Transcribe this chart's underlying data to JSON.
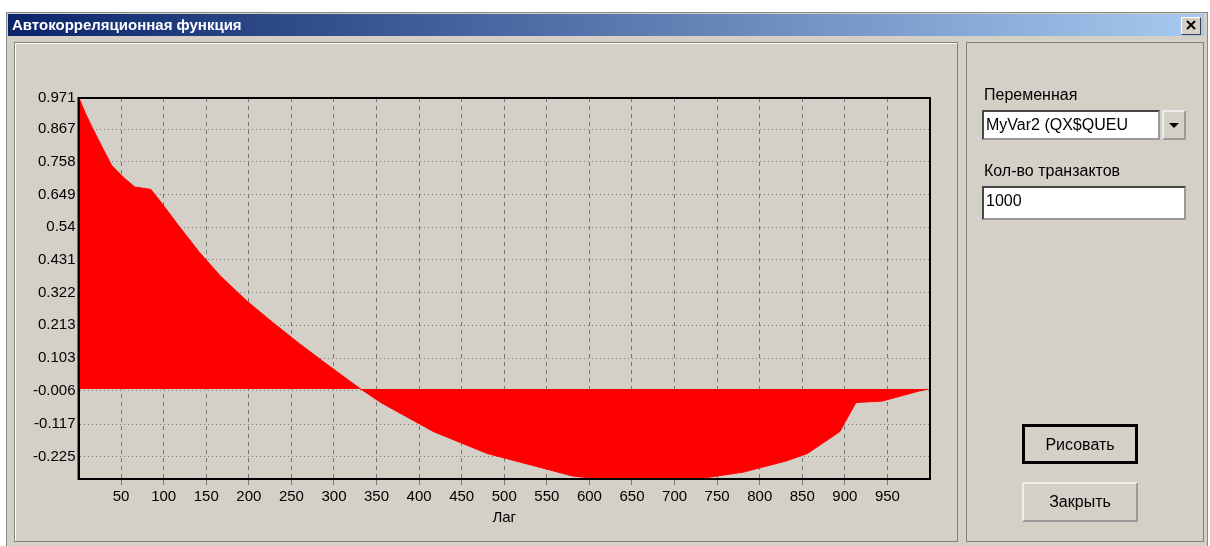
{
  "chart_data": {
    "type": "area",
    "title": "Автокорреляционная функция",
    "xlabel": "Лаг",
    "x": [
      1,
      8,
      16,
      29,
      39,
      54,
      66,
      85,
      98,
      117,
      142,
      167,
      198,
      229,
      261,
      292,
      330,
      355,
      417,
      480,
      543,
      580,
      605,
      731,
      781,
      831,
      856,
      894,
      913,
      944,
      988,
      998
    ],
    "series": [
      {
        "color": "#ff0000",
        "values": [
          0.968,
          0.92,
          0.873,
          0.8,
          0.746,
          0.703,
          0.674,
          0.666,
          0.619,
          0.547,
          0.456,
          0.376,
          0.293,
          0.22,
          0.148,
          0.082,
          0.003,
          -0.045,
          -0.142,
          -0.215,
          -0.262,
          -0.29,
          -0.298,
          -0.298,
          -0.277,
          -0.24,
          -0.215,
          -0.142,
          -0.045,
          -0.04,
          -0.006,
          0
        ]
      }
    ],
    "xlim": [
      0,
      1000
    ],
    "xticks": [
      50,
      100,
      150,
      200,
      250,
      300,
      350,
      400,
      450,
      500,
      550,
      600,
      650,
      700,
      750,
      800,
      850,
      900,
      950
    ],
    "ylim": [
      -0.3,
      0.971
    ],
    "yticks": [
      0.971,
      0.867,
      0.758,
      0.649,
      0.54,
      0.431,
      0.322,
      0.213,
      0.103,
      -0.006,
      -0.117,
      -0.225
    ],
    "grid": true,
    "legend": false,
    "marker": "none",
    "annotations": [
      "Переменная",
      "MyVar2 (QX$QUEU",
      "Кол-во транзактов",
      "1000",
      "Рисовать",
      "Закрыть"
    ]
  }
}
